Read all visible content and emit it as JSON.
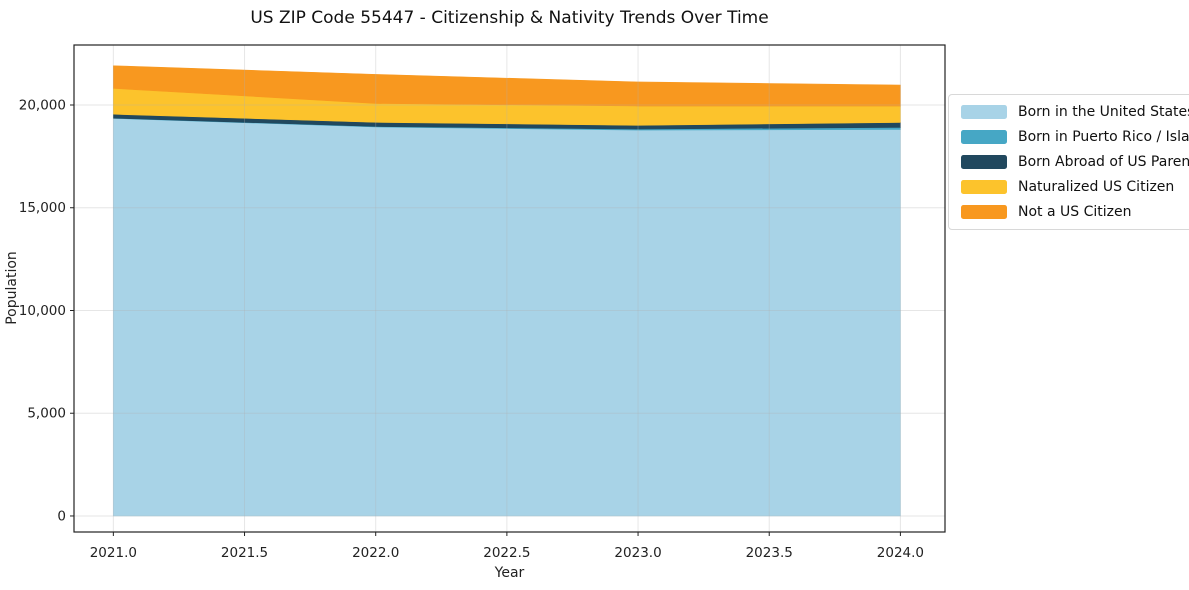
{
  "chart_data": {
    "type": "area",
    "stacked": true,
    "title": "US ZIP Code 55447 - Citizenship & Nativity Trends Over Time",
    "xlabel": "Year",
    "ylabel": "Population",
    "x": [
      2021,
      2022,
      2023,
      2024
    ],
    "series": [
      {
        "name": "Born in the United States",
        "color": "#a8d3e7",
        "values": [
          19350,
          18930,
          18780,
          18810
        ]
      },
      {
        "name": "Born in Puerto Rico / Islands",
        "color": "#46a7c5",
        "values": [
          10,
          25,
          50,
          100
        ]
      },
      {
        "name": "Born Abroad of US Parent(s)",
        "color": "#21485e",
        "values": [
          190,
          200,
          180,
          240
        ]
      },
      {
        "name": "Naturalized US Citizen",
        "color": "#fcc32c",
        "values": [
          1260,
          920,
          940,
          800
        ]
      },
      {
        "name": "Not a US Citizen",
        "color": "#f8981f",
        "values": [
          1100,
          1415,
          1170,
          1020
        ]
      }
    ],
    "xlim": [
      2020.85,
      2024.17
    ],
    "ylim": [
      -780,
      22920
    ],
    "xticks": [
      2021.0,
      2021.5,
      2022.0,
      2022.5,
      2023.0,
      2023.5,
      2024.0
    ],
    "xtick_labels": [
      "2021.0",
      "2021.5",
      "2022.0",
      "2022.5",
      "2023.0",
      "2023.5",
      "2024.0"
    ],
    "yticks": [
      0,
      5000,
      10000,
      15000,
      20000
    ],
    "ytick_labels": [
      "0",
      "5,000",
      "10,000",
      "15,000",
      "20,000"
    ],
    "grid": true,
    "legend_position": "right-outside",
    "colors": {
      "spine": "#222222",
      "grid": "#b0b0b0",
      "background": "#ffffff"
    }
  }
}
